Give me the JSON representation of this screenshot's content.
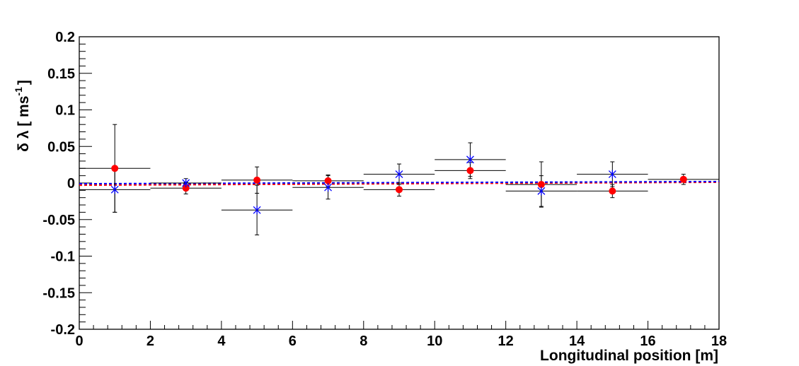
{
  "chart_data": {
    "type": "scatter",
    "xlabel": "Longitudinal position [m]",
    "ylabel": "δ λ [ ms",
    "ylabel_sup": "-1",
    "ylabel_close": "]",
    "xlim": [
      0,
      18
    ],
    "ylim": [
      -0.2,
      0.2
    ],
    "x_major_ticks": [
      0,
      2,
      4,
      6,
      8,
      10,
      12,
      14,
      16,
      18
    ],
    "x_tick_labels": [
      "0",
      "2",
      "4",
      "6",
      "8",
      "10",
      "12",
      "14",
      "16",
      "18"
    ],
    "y_major_ticks": [
      -0.2,
      -0.15,
      -0.1,
      -0.05,
      0,
      0.05,
      0.1,
      0.15,
      0.2
    ],
    "y_tick_labels": [
      "-0.2",
      "-0.15",
      "-0.1",
      "-0.05",
      "0",
      "0.05",
      "0.1",
      "0.15",
      "0.2"
    ],
    "grid": false,
    "series": [
      {
        "marker": "circle",
        "color": "#ff0000",
        "points": [
          {
            "x": 1,
            "y": 0.02,
            "xerr": 1,
            "yerr": 0.06
          },
          {
            "x": 3,
            "y": -0.007,
            "xerr": 1,
            "yerr": 0.008
          },
          {
            "x": 5,
            "y": 0.004,
            "xerr": 1,
            "yerr": 0.018
          },
          {
            "x": 7,
            "y": 0.003,
            "xerr": 1,
            "yerr": 0.008
          },
          {
            "x": 9,
            "y": -0.009,
            "xerr": 1,
            "yerr": 0.009
          },
          {
            "x": 11,
            "y": 0.017,
            "xerr": 1,
            "yerr": 0.011
          },
          {
            "x": 13,
            "y": -0.002,
            "xerr": 1,
            "yerr": 0.031
          },
          {
            "x": 15,
            "y": -0.011,
            "xerr": 1,
            "yerr": 0.009
          },
          {
            "x": 17,
            "y": 0.005,
            "xerr": 1,
            "yerr": 0.007
          }
        ],
        "fit": {
          "x": [
            0,
            18
          ],
          "y": [
            -0.003,
            0.001
          ],
          "color": "#ff0000"
        }
      },
      {
        "marker": "star",
        "color": "#0000ff",
        "points": [
          {
            "x": 1,
            "y": -0.009,
            "xerr": 1,
            "yerr": 0.031
          },
          {
            "x": 3,
            "y": 0.0,
            "xerr": 1,
            "yerr": 0.006
          },
          {
            "x": 5,
            "y": -0.037,
            "xerr": 1,
            "yerr": 0.034
          },
          {
            "x": 7,
            "y": -0.006,
            "xerr": 1,
            "yerr": 0.016
          },
          {
            "x": 9,
            "y": 0.012,
            "xerr": 1,
            "yerr": 0.014
          },
          {
            "x": 11,
            "y": 0.032,
            "xerr": 1,
            "yerr": 0.023
          },
          {
            "x": 13,
            "y": -0.011,
            "xerr": 1,
            "yerr": 0.021
          },
          {
            "x": 15,
            "y": 0.012,
            "xerr": 1,
            "yerr": 0.017
          }
        ],
        "fit": {
          "x": [
            0,
            18
          ],
          "y": [
            -0.001,
            0.002
          ],
          "color": "#0000ff"
        }
      }
    ]
  }
}
